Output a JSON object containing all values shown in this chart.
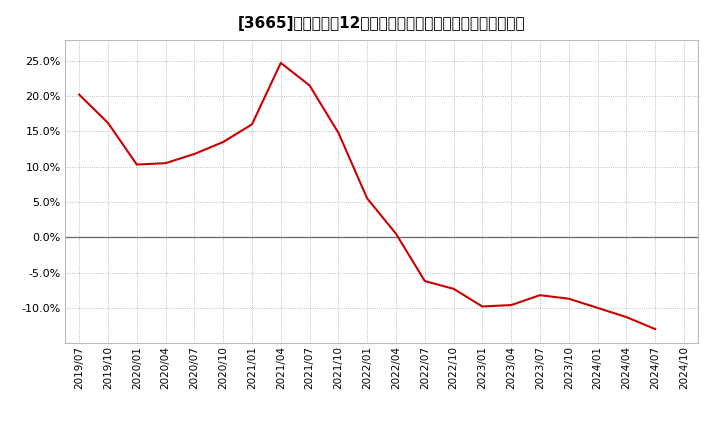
{
  "title": "[3665]　売上高の12か月移動合計の対前年同期増減率の推移",
  "line_color": "#cc0000",
  "background_color": "#ffffff",
  "plot_bg_color": "#ffffff",
  "grid_color": "#aaaaaa",
  "zero_line_color": "#666666",
  "ylim": [
    -0.15,
    0.28
  ],
  "yticks": [
    -0.1,
    -0.05,
    0.0,
    0.05,
    0.1,
    0.15,
    0.2,
    0.25
  ],
  "dates": [
    "2019/07",
    "2019/10",
    "2020/01",
    "2020/04",
    "2020/07",
    "2020/10",
    "2021/01",
    "2021/04",
    "2021/07",
    "2021/10",
    "2022/01",
    "2022/04",
    "2022/07",
    "2022/10",
    "2023/01",
    "2023/04",
    "2023/07",
    "2023/10",
    "2024/01",
    "2024/04",
    "2024/07",
    "2024/10"
  ],
  "values": [
    0.202,
    0.162,
    0.103,
    0.105,
    0.118,
    0.135,
    0.16,
    0.247,
    0.215,
    0.148,
    0.055,
    0.005,
    -0.062,
    -0.073,
    -0.098,
    -0.096,
    -0.082,
    -0.087,
    -0.1,
    -0.113,
    -0.13,
    null
  ],
  "title_fontsize": 11,
  "tick_fontsize": 7.5,
  "ytick_fontsize": 8
}
